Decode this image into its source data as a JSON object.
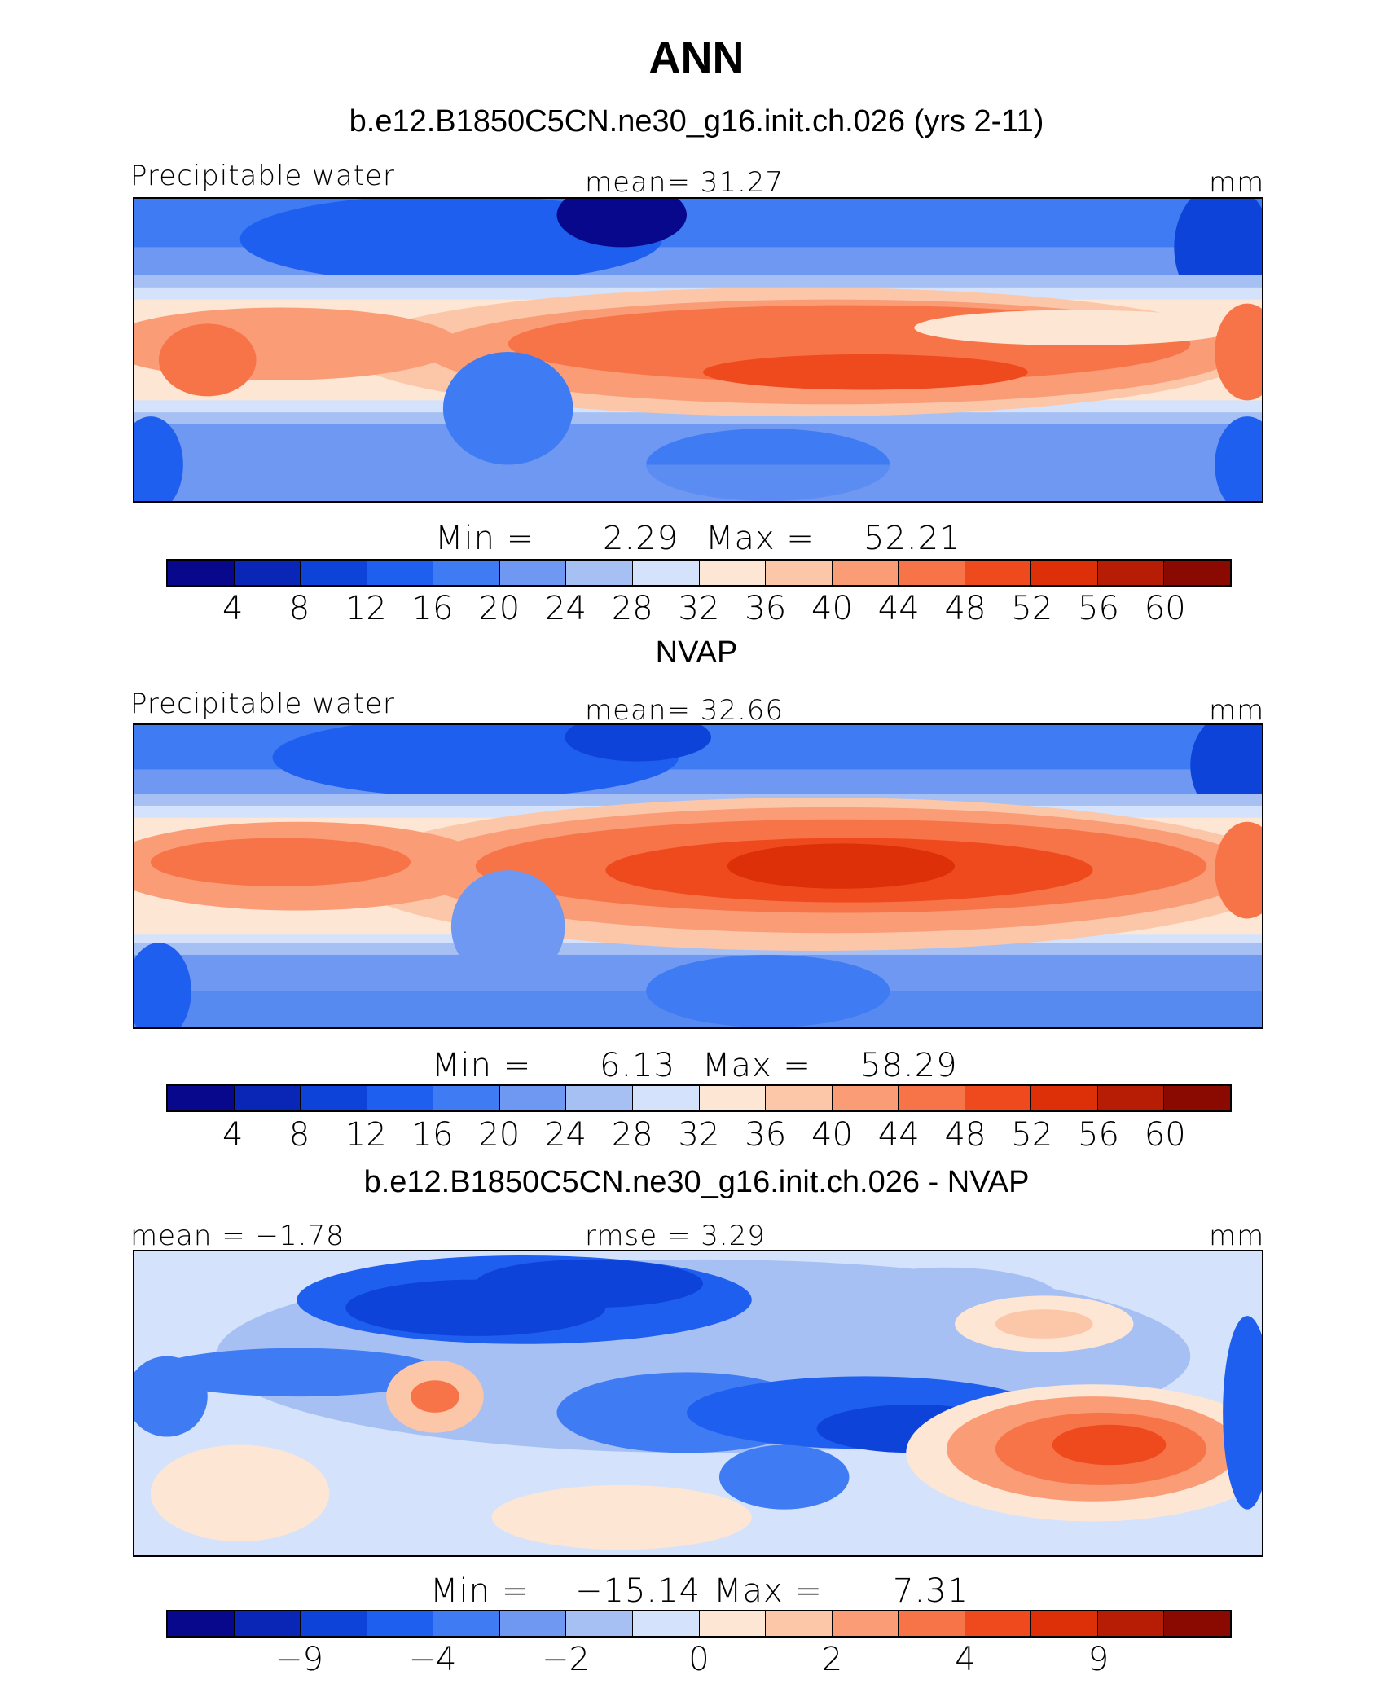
{
  "title": "ANN",
  "colors": [
    "#08088c",
    "#0a26b6",
    "#0d43d9",
    "#1f5ff0",
    "#3f7bf2",
    "#6e98f1",
    "#a6c0f4",
    "#d4e3fb",
    "#fde6d4",
    "#fcc6a9",
    "#fa9c76",
    "#f77448",
    "#ef4a1e",
    "#dd3009",
    "#b71d04",
    "#8a0a02"
  ],
  "panels": [
    {
      "title": "b.e12.B1850C5CN.ne30_g16.init.ch.026 (yrs 2-11)",
      "left_label": "Precipitable water",
      "center_label": "mean=   31.27",
      "units": "mm",
      "min_label": "Min  =",
      "min_value": "2.29",
      "max_label": "Max  =",
      "max_value": "52.21",
      "ticks": [
        "4",
        "8",
        "12",
        "16",
        "20",
        "24",
        "28",
        "32",
        "36",
        "40",
        "44",
        "48",
        "52",
        "56",
        "60"
      ]
    },
    {
      "title": "NVAP",
      "left_label": "Precipitable water",
      "center_label": "mean=   32.66",
      "units": "mm",
      "min_label": "Min  =",
      "min_value": "6.13",
      "max_label": "Max  =",
      "max_value": "58.29",
      "ticks": [
        "4",
        "8",
        "12",
        "16",
        "20",
        "24",
        "28",
        "32",
        "36",
        "40",
        "44",
        "48",
        "52",
        "56",
        "60"
      ]
    },
    {
      "title": "b.e12.B1850C5CN.ne30_g16.init.ch.026 - NVAP",
      "left_label": "mean  =   −1.78",
      "center_label": "rmse  =      3.29",
      "units": "mm",
      "min_label": "Min  =",
      "min_value": "−15.14",
      "max_label": "Max  =",
      "max_value": "7.31",
      "ticks": [
        "−9",
        "",
        "−4",
        "",
        "−2",
        "",
        "0",
        "",
        "2",
        "",
        "4",
        "",
        "9"
      ]
    }
  ]
}
